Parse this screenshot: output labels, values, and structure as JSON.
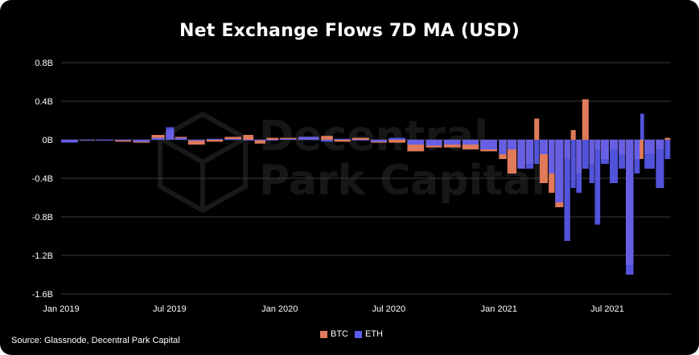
{
  "colors": {
    "background": "#000000",
    "btc": "#e07a5a",
    "eth": "#5a5cf2",
    "grid": "#3a3a3a",
    "text": "#ffffff",
    "watermark": "#2a2a2a"
  },
  "chart_data": {
    "type": "bar",
    "title": "Net Exchange Flows 7D MA (USD)",
    "xlabel": "",
    "ylabel": "",
    "ylim": [
      -1.6,
      0.8
    ],
    "y_unit": "B",
    "y_ticks": [
      0.8,
      0.4,
      0,
      -0.4,
      -0.8,
      -1.2,
      -1.6
    ],
    "y_tick_labels": [
      "0.8B",
      "0.4B",
      "0B",
      "-0.4B",
      "-0.8B",
      "-1.2B",
      "-1.6B"
    ],
    "x_tick_labels": [
      "Jan 2019",
      "Jul 2019",
      "Jan 2020",
      "Jul 2020",
      "Jan 2021",
      "Jul 2021"
    ],
    "x_ticks": [
      "2019-01-01",
      "2019-07-01",
      "2020-01-01",
      "2020-07-01",
      "2021-01-01",
      "2021-07-01"
    ],
    "x_range": [
      "2019-01-01",
      "2021-10-15"
    ],
    "grid": true,
    "legend_position": "bottom",
    "series": [
      {
        "name": "BTC",
        "color": "#e07a5a",
        "points": [
          [
            "2019-01-01",
            -0.02
          ],
          [
            "2019-02-01",
            -0.01
          ],
          [
            "2019-03-01",
            0.0
          ],
          [
            "2019-04-01",
            -0.02
          ],
          [
            "2019-05-01",
            -0.03
          ],
          [
            "2019-06-01",
            0.05
          ],
          [
            "2019-06-25",
            0.1
          ],
          [
            "2019-07-10",
            0.03
          ],
          [
            "2019-08-01",
            -0.05
          ],
          [
            "2019-09-01",
            -0.02
          ],
          [
            "2019-10-01",
            0.03
          ],
          [
            "2019-11-01",
            0.05
          ],
          [
            "2019-11-20",
            -0.04
          ],
          [
            "2019-12-10",
            0.02
          ],
          [
            "2020-01-01",
            0.02
          ],
          [
            "2020-02-01",
            0.03
          ],
          [
            "2020-03-10",
            0.04
          ],
          [
            "2020-04-01",
            -0.02
          ],
          [
            "2020-05-01",
            0.02
          ],
          [
            "2020-06-01",
            -0.03
          ],
          [
            "2020-07-01",
            -0.03
          ],
          [
            "2020-08-01",
            -0.12
          ],
          [
            "2020-09-01",
            -0.08
          ],
          [
            "2020-10-01",
            -0.08
          ],
          [
            "2020-11-01",
            -0.1
          ],
          [
            "2020-12-01",
            -0.12
          ],
          [
            "2021-01-01",
            -0.2
          ],
          [
            "2021-01-15",
            -0.35
          ],
          [
            "2021-02-01",
            -0.3
          ],
          [
            "2021-02-15",
            -0.25
          ],
          [
            "2021-03-01",
            0.22
          ],
          [
            "2021-03-10",
            -0.45
          ],
          [
            "2021-03-25",
            -0.55
          ],
          [
            "2021-04-05",
            -0.7
          ],
          [
            "2021-04-20",
            -0.2
          ],
          [
            "2021-05-01",
            0.1
          ],
          [
            "2021-05-10",
            -0.35
          ],
          [
            "2021-05-20",
            0.42
          ],
          [
            "2021-06-01",
            -0.25
          ],
          [
            "2021-06-10",
            -0.1
          ],
          [
            "2021-06-20",
            -0.2
          ],
          [
            "2021-07-05",
            -0.1
          ],
          [
            "2021-07-20",
            -0.15
          ],
          [
            "2021-08-01",
            -1.3
          ],
          [
            "2021-08-15",
            -0.2
          ],
          [
            "2021-09-01",
            -0.15
          ],
          [
            "2021-09-20",
            -0.1
          ],
          [
            "2021-10-05",
            0.02
          ]
        ]
      },
      {
        "name": "ETH",
        "color": "#5a5cf2",
        "points": [
          [
            "2019-01-01",
            -0.03
          ],
          [
            "2019-02-01",
            0.0
          ],
          [
            "2019-03-01",
            -0.01
          ],
          [
            "2019-04-01",
            0.0
          ],
          [
            "2019-05-01",
            -0.02
          ],
          [
            "2019-06-01",
            0.02
          ],
          [
            "2019-06-25",
            0.13
          ],
          [
            "2019-07-10",
            0.02
          ],
          [
            "2019-08-01",
            -0.01
          ],
          [
            "2019-09-01",
            0.01
          ],
          [
            "2019-10-01",
            0.01
          ],
          [
            "2019-11-01",
            0.0
          ],
          [
            "2019-12-01",
            0.0
          ],
          [
            "2020-01-01",
            0.01
          ],
          [
            "2020-02-01",
            0.03
          ],
          [
            "2020-03-10",
            -0.02
          ],
          [
            "2020-04-01",
            0.01
          ],
          [
            "2020-05-01",
            0.0
          ],
          [
            "2020-06-01",
            -0.02
          ],
          [
            "2020-07-01",
            0.02
          ],
          [
            "2020-08-01",
            -0.05
          ],
          [
            "2020-09-01",
            -0.06
          ],
          [
            "2020-10-01",
            -0.05
          ],
          [
            "2020-11-01",
            -0.05
          ],
          [
            "2020-12-01",
            -0.1
          ],
          [
            "2021-01-01",
            -0.15
          ],
          [
            "2021-01-15",
            -0.1
          ],
          [
            "2021-02-01",
            -0.3
          ],
          [
            "2021-02-15",
            -0.3
          ],
          [
            "2021-03-01",
            -0.25
          ],
          [
            "2021-03-10",
            -0.15
          ],
          [
            "2021-03-25",
            -0.35
          ],
          [
            "2021-04-05",
            -0.65
          ],
          [
            "2021-04-20",
            -1.05
          ],
          [
            "2021-05-01",
            -0.5
          ],
          [
            "2021-05-10",
            -0.55
          ],
          [
            "2021-05-20",
            -0.3
          ],
          [
            "2021-06-01",
            -0.45
          ],
          [
            "2021-06-10",
            -0.88
          ],
          [
            "2021-06-20",
            -0.25
          ],
          [
            "2021-07-05",
            -0.45
          ],
          [
            "2021-07-20",
            -0.3
          ],
          [
            "2021-08-01",
            -1.4
          ],
          [
            "2021-08-15",
            -0.35
          ],
          [
            "2021-08-25",
            0.27
          ],
          [
            "2021-09-01",
            -0.3
          ],
          [
            "2021-09-20",
            -0.5
          ],
          [
            "2021-10-05",
            -0.2
          ]
        ]
      }
    ]
  },
  "source_text": "Source: Glassnode, Decentral Park Capital",
  "watermark": {
    "line1": "Decentral",
    "line2": "Park Capital"
  }
}
